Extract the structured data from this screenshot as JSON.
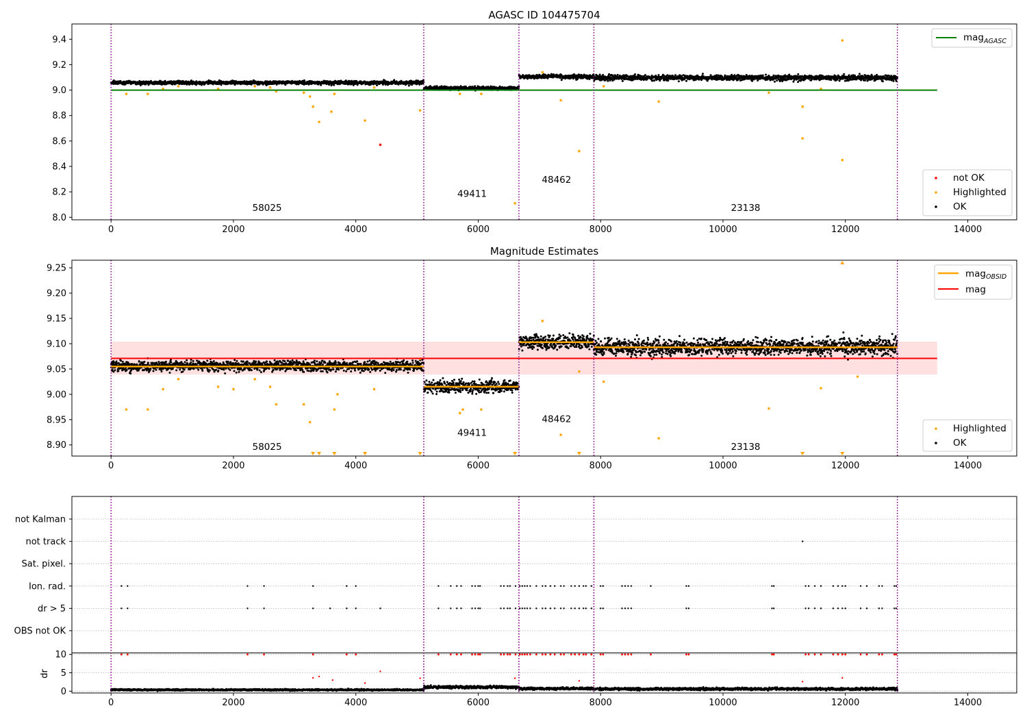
{
  "chart_data": [
    {
      "type": "scatter",
      "title": "AGASC ID 104475704",
      "xlim": [
        -640,
        14800
      ],
      "ylim": [
        7.98,
        9.52
      ],
      "xticks": [
        0,
        2000,
        4000,
        6000,
        8000,
        10000,
        12000,
        14000
      ],
      "yticks": [
        "8.0",
        "8.2",
        "8.4",
        "8.6",
        "8.8",
        "9.0",
        "9.2",
        "9.4"
      ],
      "grid": false,
      "vlines": [
        0,
        5110,
        6665,
        7890,
        12850
      ],
      "hline": {
        "y": 9.0,
        "x0": 0,
        "x1": 13500,
        "color": "#008000"
      },
      "obsid_labels": [
        {
          "text": "58025",
          "x": 2550,
          "y": 8.05
        },
        {
          "text": "49411",
          "x": 5900,
          "y": 8.16
        },
        {
          "text": "48462",
          "x": 7280,
          "y": 8.27
        },
        {
          "text": "23138",
          "x": 10370,
          "y": 8.05
        }
      ],
      "segments": [
        {
          "x0": 0,
          "x1": 5110,
          "mean": 9.058,
          "spread": 0.014
        },
        {
          "x0": 5110,
          "x1": 6665,
          "mean": 9.015,
          "spread": 0.014
        },
        {
          "x0": 6665,
          "x1": 7890,
          "mean": 9.105,
          "spread": 0.016
        },
        {
          "x0": 7890,
          "x1": 12850,
          "mean": 9.097,
          "spread": 0.02
        }
      ],
      "highlighted_points": [
        [
          250,
          8.97
        ],
        [
          600,
          8.97
        ],
        [
          850,
          9.01
        ],
        [
          1100,
          9.03
        ],
        [
          1750,
          9.01
        ],
        [
          2350,
          9.03
        ],
        [
          2600,
          9.02
        ],
        [
          2700,
          8.99
        ],
        [
          3150,
          8.98
        ],
        [
          3250,
          8.95
        ],
        [
          3300,
          8.87
        ],
        [
          3400,
          8.75
        ],
        [
          3600,
          8.83
        ],
        [
          3650,
          8.97
        ],
        [
          4150,
          8.76
        ],
        [
          4300,
          9.02
        ],
        [
          5050,
          8.84
        ],
        [
          5700,
          8.97
        ],
        [
          6050,
          8.97
        ],
        [
          6600,
          8.11
        ],
        [
          7050,
          9.14
        ],
        [
          7350,
          8.92
        ],
        [
          7650,
          8.52
        ],
        [
          8050,
          9.03
        ],
        [
          8950,
          8.91
        ],
        [
          10750,
          8.98
        ],
        [
          11300,
          8.62
        ],
        [
          11300,
          8.87
        ],
        [
          11600,
          9.01
        ],
        [
          11950,
          9.39
        ],
        [
          11950,
          8.45
        ]
      ],
      "not_ok_points": [
        [
          4400,
          8.57
        ]
      ],
      "legend": {
        "upper_right": [
          "mag_AGASC"
        ],
        "lower_right": [
          "not OK",
          "Highlighted",
          "OK"
        ]
      },
      "legend_labels": {
        "mag_main": "mag",
        "mag_sub": "AGASC",
        "not_ok": "not OK",
        "highlighted": "Highlighted",
        "ok": "OK"
      }
    },
    {
      "type": "scatter",
      "title": "Magnitude Estimates",
      "xlim": [
        -640,
        14800
      ],
      "ylim": [
        8.878,
        9.265
      ],
      "xticks": [
        0,
        2000,
        4000,
        6000,
        8000,
        10000,
        12000,
        14000
      ],
      "yticks": [
        "8.90",
        "8.95",
        "9.00",
        "9.05",
        "9.10",
        "9.15",
        "9.20",
        "9.25"
      ],
      "grid": false,
      "vlines": [
        0,
        5110,
        6665,
        7890,
        12850
      ],
      "mag": {
        "value": 9.071,
        "band": [
          9.039,
          9.104
        ],
        "x0": 0,
        "x1": 13500
      },
      "mag_obsid": [
        {
          "x0": 0,
          "x1": 5110,
          "value": 9.055
        },
        {
          "x0": 5110,
          "x1": 6665,
          "value": 9.015
        },
        {
          "x0": 6665,
          "x1": 7890,
          "value": 9.103
        },
        {
          "x0": 7890,
          "x1": 12850,
          "value": 9.093
        }
      ],
      "segments": [
        {
          "x0": 0,
          "x1": 5110,
          "mean": 9.056,
          "spread": 0.01
        },
        {
          "x0": 5110,
          "x1": 6665,
          "mean": 9.015,
          "spread": 0.012
        },
        {
          "x0": 6665,
          "x1": 7890,
          "mean": 9.103,
          "spread": 0.014
        },
        {
          "x0": 7890,
          "x1": 12850,
          "mean": 9.093,
          "spread": 0.016
        }
      ],
      "obsid_labels": [
        {
          "text": "58025",
          "x": 2550,
          "y": 8.89
        },
        {
          "text": "49411",
          "x": 5900,
          "y": 8.918
        },
        {
          "text": "48462",
          "x": 7280,
          "y": 8.945
        },
        {
          "text": "23138",
          "x": 10370,
          "y": 8.89
        }
      ],
      "highlighted_points": [
        [
          250,
          8.97
        ],
        [
          600,
          8.97
        ],
        [
          850,
          9.01
        ],
        [
          1100,
          9.03
        ],
        [
          1750,
          9.015
        ],
        [
          2000,
          9.01
        ],
        [
          2350,
          9.03
        ],
        [
          2600,
          9.015
        ],
        [
          2700,
          8.98
        ],
        [
          3150,
          8.98
        ],
        [
          3250,
          8.945
        ],
        [
          3650,
          8.97
        ],
        [
          3700,
          9.0
        ],
        [
          4300,
          9.01
        ],
        [
          5050,
          9.07
        ],
        [
          5700,
          8.963
        ],
        [
          5750,
          8.97
        ],
        [
          6050,
          8.97
        ],
        [
          7050,
          9.145
        ],
        [
          7350,
          8.92
        ],
        [
          7650,
          9.045
        ],
        [
          8050,
          9.025
        ],
        [
          8950,
          8.913
        ],
        [
          10750,
          8.972
        ],
        [
          11600,
          9.012
        ],
        [
          12200,
          9.035
        ]
      ],
      "offscale_low": [
        3300,
        3400,
        3650,
        4150,
        5050,
        6600,
        7650,
        11300,
        11950
      ],
      "offscale_high": [
        11950
      ],
      "legend": {
        "upper_right": [
          "mag_OBSID",
          "mag"
        ],
        "lower_right": [
          "Highlighted",
          "OK"
        ]
      },
      "legend_labels": {
        "mag_obsid_main": "mag",
        "mag_obsid_sub": "OBSID",
        "mag": "mag",
        "highlighted": "Highlighted",
        "ok": "OK"
      }
    },
    {
      "type": "scatter",
      "title": "",
      "xlim": [
        -640,
        14800
      ],
      "xticks": [
        0,
        2000,
        4000,
        6000,
        8000,
        10000,
        12000,
        14000
      ],
      "categories": [
        "not Kalman",
        "not track",
        "Sat. pixel.",
        "Ion. rad.",
        "dr > 5",
        "OBS not OK"
      ],
      "grid": true,
      "vlines": [
        0,
        5110,
        6665,
        7890,
        12850
      ],
      "flag_points": {
        "not track": [
          11300
        ],
        "Ion. rad.": [
          170,
          270,
          2230,
          2500,
          3300,
          3850,
          4000,
          5350,
          5550,
          5650,
          5720,
          5900,
          5950,
          6000,
          6030,
          6370,
          6420,
          6480,
          6520,
          6610,
          6680,
          6720,
          6760,
          6800,
          6850,
          6950,
          7050,
          7100,
          7180,
          7250,
          7350,
          7400,
          7520,
          7580,
          7650,
          7720,
          7760,
          7850,
          8000,
          8040,
          8350,
          8400,
          8450,
          8500,
          8820,
          9400,
          9440,
          10800,
          10830,
          11350,
          11400,
          11500,
          11600,
          11800,
          11880,
          11950,
          12000,
          12250,
          12350,
          12550,
          12600,
          12800,
          12830
        ],
        "dr > 5": [
          170,
          270,
          2230,
          2500,
          3300,
          3580,
          3850,
          4000,
          4400,
          5350,
          5550,
          5650,
          5720,
          5900,
          5950,
          6000,
          6030,
          6370,
          6420,
          6480,
          6520,
          6610,
          6680,
          6720,
          6760,
          6800,
          6850,
          6950,
          7050,
          7100,
          7180,
          7250,
          7350,
          7400,
          7520,
          7580,
          7650,
          7720,
          7760,
          7850,
          8000,
          8040,
          8350,
          8400,
          8450,
          8500,
          9400,
          9440,
          10800,
          10830,
          11350,
          11400,
          11500,
          11600,
          11800,
          11880,
          11950,
          12000,
          12250,
          12350,
          12550,
          12600,
          12800,
          12830
        ]
      }
    },
    {
      "type": "scatter",
      "title": "",
      "ylabel": "dr",
      "xlim": [
        -640,
        14800
      ],
      "ylim": [
        -0.5,
        10.5
      ],
      "xticks": [
        0,
        2000,
        4000,
        6000,
        8000,
        10000,
        12000,
        14000
      ],
      "yticks": [
        "0",
        "5",
        "10"
      ],
      "grid": true,
      "vlines": [
        0,
        5110,
        6665,
        7890,
        12850
      ],
      "segments": [
        {
          "x0": 0,
          "x1": 5110,
          "mean": 0.35,
          "spread": 0.2
        },
        {
          "x0": 5110,
          "x1": 6665,
          "mean": 1.1,
          "spread": 0.35
        },
        {
          "x0": 6665,
          "x1": 7890,
          "mean": 0.7,
          "spread": 0.3
        },
        {
          "x0": 7890,
          "x1": 12850,
          "mean": 0.6,
          "spread": 0.3
        }
      ],
      "red_points": [
        [
          3300,
          3.6
        ],
        [
          3400,
          4.0
        ],
        [
          3620,
          3.0
        ],
        [
          4150,
          2.2
        ],
        [
          4400,
          5.4
        ],
        [
          5050,
          3.5
        ],
        [
          6600,
          3.5
        ],
        [
          7650,
          2.8
        ],
        [
          11300,
          2.6
        ],
        [
          11950,
          3.6
        ]
      ],
      "clipped_at_10": [
        170,
        270,
        2230,
        2500,
        3300,
        3850,
        4000,
        5350,
        5550,
        5650,
        5720,
        5900,
        5950,
        6000,
        6030,
        6370,
        6420,
        6480,
        6520,
        6610,
        6680,
        6720,
        6760,
        6800,
        6850,
        6950,
        7050,
        7100,
        7180,
        7250,
        7350,
        7400,
        7520,
        7580,
        7650,
        7720,
        7760,
        7850,
        8000,
        8040,
        8350,
        8400,
        8450,
        8500,
        8820,
        9400,
        9440,
        10800,
        10830,
        11350,
        11400,
        11500,
        11600,
        11800,
        11880,
        11950,
        12000,
        12250,
        12350,
        12550,
        12600,
        12800,
        12830
      ]
    }
  ],
  "colors": {
    "ok": "#000000",
    "highlighted": "#ffa500",
    "not_ok": "#ff0000",
    "mag_agasc": "#008000",
    "mag": "#ff0000",
    "mag_band": "#ffcccc",
    "mag_obsid": "#ffa500",
    "vline": "#800080",
    "grid": "#b0b0b0"
  }
}
